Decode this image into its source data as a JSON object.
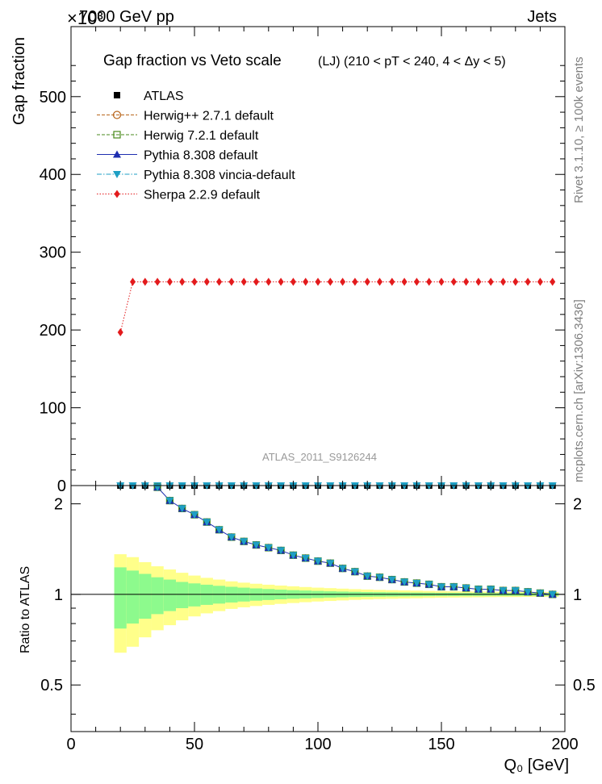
{
  "header": {
    "left": "7000 GeV pp",
    "right": "Jets",
    "exponent": "×10³"
  },
  "side_text": {
    "rivet": "Rivet 3.1.10, ≥ 100k events",
    "mcplots": "mcplots.cern.ch [arXiv:1306.3436]"
  },
  "chart_data": [
    {
      "type": "line",
      "title": "Gap fraction vs Veto scale",
      "subtitle": "(LJ) (210 < pT < 240, 4 < Δy < 5)",
      "ylabel": "Gap fraction",
      "ylim": [
        0,
        590
      ],
      "yticks": [
        0,
        100,
        200,
        300,
        400,
        500
      ],
      "watermark": "ATLAS_2011_S9126244",
      "grid": false,
      "legend_position": "top-left",
      "legend": [
        {
          "label": "ATLAS",
          "color": "#000000",
          "marker": "square-filled",
          "line": "none"
        },
        {
          "label": "Herwig++ 2.7.1 default",
          "color": "#b8651b",
          "marker": "circle-open",
          "line": "dashed"
        },
        {
          "label": "Herwig 7.2.1 default",
          "color": "#4a8a1c",
          "marker": "square-open",
          "line": "dashed"
        },
        {
          "label": "Pythia 8.308 default",
          "color": "#1f2fb0",
          "marker": "triangle-up",
          "line": "solid"
        },
        {
          "label": "Pythia 8.308 vincia-default",
          "color": "#1e9fc4",
          "marker": "triangle-down",
          "line": "dashdot"
        },
        {
          "label": "Sherpa 2.2.9 default",
          "color": "#e31a1c",
          "marker": "diamond",
          "line": "dotted"
        }
      ],
      "x": [
        20,
        25,
        30,
        35,
        40,
        45,
        50,
        55,
        60,
        65,
        70,
        75,
        80,
        85,
        90,
        95,
        100,
        105,
        110,
        115,
        120,
        125,
        130,
        135,
        140,
        145,
        150,
        155,
        160,
        165,
        170,
        175,
        180,
        185,
        190,
        195
      ],
      "series": [
        {
          "name": "Sherpa 2.2.9 default",
          "values": [
            197,
            262,
            262,
            262,
            262,
            262,
            262,
            262,
            262,
            262,
            262,
            262,
            262,
            262,
            262,
            262,
            262,
            262,
            262,
            262,
            262,
            262,
            262,
            262,
            262,
            262,
            262,
            262,
            262,
            262,
            262,
            262,
            262,
            262,
            262,
            262
          ]
        },
        {
          "name": "Other generators and ATLAS",
          "values": [
            0,
            0,
            0,
            0,
            0,
            0,
            0,
            0,
            0,
            0,
            0,
            0,
            0,
            0,
            0,
            0,
            0,
            0,
            0,
            0,
            0,
            0,
            0,
            0,
            0,
            0,
            0,
            0,
            0,
            0,
            0,
            0,
            0,
            0,
            0,
            0
          ]
        }
      ]
    },
    {
      "type": "line",
      "ylabel": "Ratio to ATLAS",
      "xlabel": "Q₀ [GeV]",
      "xlim": [
        0,
        200
      ],
      "ylim": [
        0.35,
        2.3
      ],
      "xticks": [
        0,
        50,
        100,
        150,
        200
      ],
      "yticks": [
        0.5,
        1,
        2
      ],
      "x": [
        20,
        25,
        30,
        35,
        40,
        45,
        50,
        55,
        60,
        65,
        70,
        75,
        80,
        85,
        90,
        95,
        100,
        105,
        110,
        115,
        120,
        125,
        130,
        135,
        140,
        145,
        150,
        155,
        160,
        165,
        170,
        175,
        180,
        185,
        190,
        195
      ],
      "series": [
        {
          "name": "MC / ATLAS",
          "values": [
            null,
            null,
            null,
            2.27,
            2.05,
            1.93,
            1.84,
            1.74,
            1.64,
            1.55,
            1.5,
            1.46,
            1.43,
            1.4,
            1.35,
            1.32,
            1.29,
            1.27,
            1.22,
            1.19,
            1.15,
            1.14,
            1.12,
            1.1,
            1.09,
            1.08,
            1.06,
            1.06,
            1.05,
            1.04,
            1.04,
            1.03,
            1.03,
            1.02,
            1.01,
            1.0
          ]
        }
      ],
      "band_green": [
        0.23,
        0.2,
        0.17,
        0.14,
        0.12,
        0.1,
        0.088,
        0.077,
        0.068,
        0.06,
        0.053,
        0.047,
        0.042,
        0.037,
        0.033,
        0.03,
        0.027,
        0.024,
        0.022,
        0.02,
        0.018,
        0.017,
        0.016,
        0.015,
        0.014,
        0.013,
        0.012,
        0.012,
        0.011,
        0.011,
        0.01,
        0.01,
        0.01,
        0.01,
        0.01,
        0.01
      ],
      "band_yellow": [
        0.36,
        0.33,
        0.28,
        0.24,
        0.21,
        0.18,
        0.155,
        0.135,
        0.12,
        0.105,
        0.094,
        0.085,
        0.077,
        0.07,
        0.064,
        0.058,
        0.053,
        0.049,
        0.045,
        0.041,
        0.038,
        0.035,
        0.033,
        0.031,
        0.029,
        0.027,
        0.025,
        0.024,
        0.023,
        0.022,
        0.021,
        0.02,
        0.02,
        0.019,
        0.019,
        0.018
      ]
    }
  ]
}
